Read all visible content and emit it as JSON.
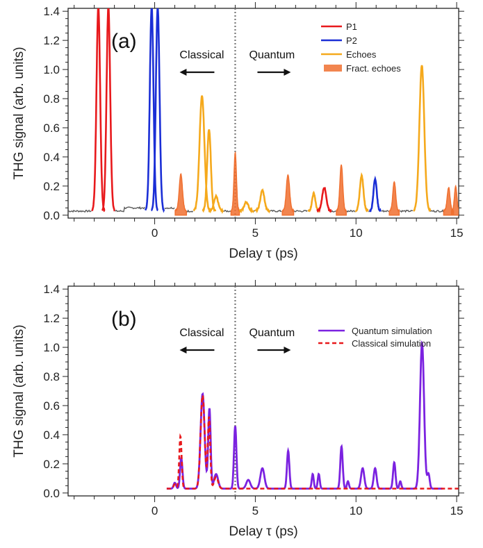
{
  "chart_data": [
    {
      "type": "line",
      "panel_label": "(a)",
      "xlabel": "Delay τ (ps)",
      "ylabel": "THG signal (arb. units)",
      "xlim": [
        -4.3,
        15.1
      ],
      "ylim": [
        -0.02,
        1.42
      ],
      "xticks": [
        0,
        5,
        10,
        15
      ],
      "yticks": [
        0.0,
        0.2,
        0.4,
        0.6,
        0.8,
        1.0,
        1.2,
        1.4
      ],
      "ytick_labels": [
        "0.0",
        "0.2",
        "0.4",
        "0.6",
        "0.8",
        "1.0",
        "1.2",
        "1.4"
      ],
      "divider_x": 4.0,
      "annotations": [
        {
          "text": "Classical",
          "arrow": "left"
        },
        {
          "text": "Quantum",
          "arrow": "right"
        }
      ],
      "legend": {
        "position": "top-right",
        "entries": [
          {
            "label": "P1",
            "color": "#e8191c",
            "kind": "line"
          },
          {
            "label": "P2",
            "color": "#1a2ed6",
            "kind": "line"
          },
          {
            "label": "Echoes",
            "color": "#f5a91c",
            "kind": "line"
          },
          {
            "label": "Fract. echoes",
            "color": "#f07030",
            "kind": "fill"
          }
        ]
      },
      "background_color": "#5a5a5a",
      "background_level": 0.02,
      "peaks": [
        {
          "series": "P1",
          "x": -2.8,
          "y": 1.4,
          "w": 0.09
        },
        {
          "series": "P1",
          "x": -2.3,
          "y": 1.4,
          "w": 0.09
        },
        {
          "series": "P2",
          "x": -0.15,
          "y": 1.4,
          "w": 0.09
        },
        {
          "series": "P2",
          "x": 0.15,
          "y": 1.4,
          "w": 0.09
        },
        {
          "series": "Fract. echoes",
          "x": 1.3,
          "y": 0.25,
          "w": 0.08
        },
        {
          "series": "Echoes",
          "x": 2.35,
          "y": 0.79,
          "w": 0.12
        },
        {
          "series": "Echoes",
          "x": 2.7,
          "y": 0.56,
          "w": 0.09
        },
        {
          "series": "Echoes",
          "x": 3.05,
          "y": 0.1,
          "w": 0.1
        },
        {
          "series": "Fract. echoes",
          "x": 4.0,
          "y": 0.4,
          "w": 0.06
        },
        {
          "series": "Echoes",
          "x": 4.55,
          "y": 0.06,
          "w": 0.1
        },
        {
          "series": "Echoes",
          "x": 5.35,
          "y": 0.14,
          "w": 0.1
        },
        {
          "series": "Fract. echoes",
          "x": 6.62,
          "y": 0.25,
          "w": 0.08
        },
        {
          "series": "Echoes",
          "x": 7.9,
          "y": 0.12,
          "w": 0.08
        },
        {
          "series": "P1",
          "x": 8.42,
          "y": 0.16,
          "w": 0.1
        },
        {
          "series": "Fract. echoes",
          "x": 9.27,
          "y": 0.32,
          "w": 0.07
        },
        {
          "series": "Echoes",
          "x": 10.28,
          "y": 0.24,
          "w": 0.09
        },
        {
          "series": "P2",
          "x": 10.95,
          "y": 0.22,
          "w": 0.08
        },
        {
          "series": "Fract. echoes",
          "x": 11.9,
          "y": 0.2,
          "w": 0.07
        },
        {
          "series": "Echoes",
          "x": 13.27,
          "y": 1.0,
          "w": 0.12
        },
        {
          "series": "Fract. echoes",
          "x": 14.6,
          "y": 0.16,
          "w": 0.07
        },
        {
          "series": "Fract. echoes",
          "x": 14.95,
          "y": 0.17,
          "w": 0.06
        }
      ]
    },
    {
      "type": "line",
      "panel_label": "(b)",
      "xlabel": "Delay τ (ps)",
      "ylabel": "THG signal (arb. units)",
      "xlim": [
        -4.3,
        15.1
      ],
      "ylim": [
        -0.02,
        1.42
      ],
      "xticks": [
        0,
        5,
        10,
        15
      ],
      "yticks": [
        0.0,
        0.2,
        0.4,
        0.6,
        0.8,
        1.0,
        1.2,
        1.4
      ],
      "ytick_labels": [
        "0.0",
        "0.2",
        "0.4",
        "0.6",
        "0.8",
        "1.0",
        "1.2",
        "1.4"
      ],
      "divider_x": 4.0,
      "annotations": [
        {
          "text": "Classical",
          "arrow": "left"
        },
        {
          "text": "Quantum",
          "arrow": "right"
        }
      ],
      "legend": {
        "position": "top-right",
        "entries": [
          {
            "label": "Quantum simulation",
            "color": "#7b22e0",
            "kind": "line"
          },
          {
            "label": "Classical simulation",
            "color": "#e8191c",
            "kind": "dash"
          }
        ]
      },
      "series": [
        {
          "name": "Quantum simulation",
          "color": "#7b22e0",
          "x_range": [
            0.6,
            14.3
          ],
          "baseline": 0.03,
          "peaks": [
            {
              "x": 1.0,
              "y": 0.04,
              "w": 0.06
            },
            {
              "x": 1.32,
              "y": 0.21,
              "w": 0.06
            },
            {
              "x": 2.38,
              "y": 0.65,
              "w": 0.1
            },
            {
              "x": 2.72,
              "y": 0.55,
              "w": 0.06
            },
            {
              "x": 3.05,
              "y": 0.1,
              "w": 0.1
            },
            {
              "x": 4.0,
              "y": 0.43,
              "w": 0.06
            },
            {
              "x": 4.65,
              "y": 0.06,
              "w": 0.1
            },
            {
              "x": 5.35,
              "y": 0.14,
              "w": 0.1
            },
            {
              "x": 6.63,
              "y": 0.26,
              "w": 0.06
            },
            {
              "x": 7.85,
              "y": 0.1,
              "w": 0.05
            },
            {
              "x": 8.15,
              "y": 0.1,
              "w": 0.05
            },
            {
              "x": 9.28,
              "y": 0.29,
              "w": 0.06
            },
            {
              "x": 9.6,
              "y": 0.05,
              "w": 0.05
            },
            {
              "x": 10.33,
              "y": 0.14,
              "w": 0.08
            },
            {
              "x": 10.95,
              "y": 0.14,
              "w": 0.07
            },
            {
              "x": 11.9,
              "y": 0.18,
              "w": 0.06
            },
            {
              "x": 12.2,
              "y": 0.05,
              "w": 0.05
            },
            {
              "x": 13.28,
              "y": 1.0,
              "w": 0.1
            },
            {
              "x": 13.6,
              "y": 0.1,
              "w": 0.06
            }
          ]
        },
        {
          "name": "Classical simulation",
          "color": "#e8191c",
          "dashed": true,
          "x_range": [
            0.6,
            15.1
          ],
          "baseline": 0.03,
          "peaks": [
            {
              "x": 1.0,
              "y": 0.03,
              "w": 0.06
            },
            {
              "x": 1.28,
              "y": 0.36,
              "w": 0.06
            },
            {
              "x": 2.38,
              "y": 0.64,
              "w": 0.1
            },
            {
              "x": 2.7,
              "y": 0.49,
              "w": 0.06
            },
            {
              "x": 3.05,
              "y": 0.08,
              "w": 0.1
            }
          ]
        }
      ]
    }
  ]
}
